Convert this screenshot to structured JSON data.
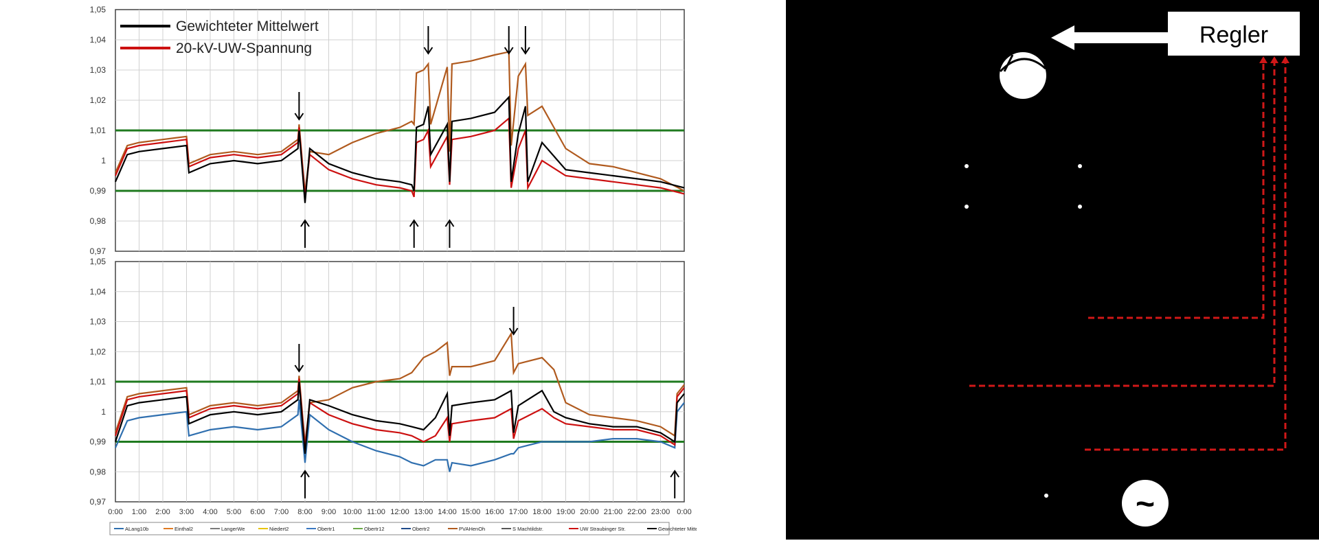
{
  "chart_data": [
    {
      "type": "line",
      "title": "",
      "xlabel": "",
      "ylabel": "",
      "ylim": [
        0.97,
        1.05
      ],
      "yticks": [
        "0,97",
        "0,98",
        "0,99",
        "1",
        "1,01",
        "1,02",
        "1,03",
        "1,04",
        "1,05"
      ],
      "grid": true,
      "limit_lines": [
        1.01,
        0.99
      ],
      "legend_position": "top-left",
      "legend": [
        "Gewichteter Mittelwert",
        "20-kV-UW-Spannung"
      ],
      "annotation_arrows": [
        {
          "x_hour": 7.75,
          "direction": "down"
        },
        {
          "x_hour": 8.0,
          "direction": "up"
        },
        {
          "x_hour": 12.6,
          "direction": "up"
        },
        {
          "x_hour": 13.2,
          "direction": "down"
        },
        {
          "x_hour": 14.1,
          "direction": "up"
        },
        {
          "x_hour": 16.6,
          "direction": "down"
        },
        {
          "x_hour": 17.3,
          "direction": "down"
        }
      ],
      "series": [
        {
          "name": "Gewichteter Mittelwert",
          "color": "#000000",
          "x": [
            0,
            0.5,
            1,
            2,
            3,
            3.1,
            4,
            5,
            6,
            7,
            7.7,
            7.75,
            8,
            8.2,
            9,
            10,
            11,
            12,
            12.5,
            12.6,
            12.7,
            13,
            13.2,
            13.3,
            14,
            14.1,
            14.2,
            15,
            16,
            16.6,
            16.7,
            17,
            17.3,
            17.4,
            18,
            19,
            20,
            21,
            22,
            23,
            23.5,
            24
          ],
          "y": [
            0.993,
            1.002,
            1.003,
            1.004,
            1.005,
            0.996,
            0.999,
            1.0,
            0.999,
            1.0,
            1.004,
            1.01,
            0.986,
            1.004,
            0.999,
            0.996,
            0.994,
            0.993,
            0.992,
            0.99,
            1.011,
            1.012,
            1.018,
            1.002,
            1.012,
            0.993,
            1.013,
            1.014,
            1.016,
            1.021,
            0.993,
            1.009,
            1.018,
            0.993,
            1.006,
            0.997,
            0.996,
            0.995,
            0.994,
            0.993,
            0.992,
            0.991
          ]
        },
        {
          "name": "20-kV-UW-Spannung",
          "color": "#cc1010",
          "x": [
            0,
            0.5,
            1,
            2,
            3,
            3.1,
            4,
            5,
            6,
            7,
            7.7,
            7.75,
            8,
            8.2,
            9,
            10,
            11,
            12,
            12.5,
            12.6,
            12.7,
            13,
            13.2,
            13.3,
            14,
            14.1,
            14.2,
            15,
            16,
            16.6,
            16.7,
            17,
            17.3,
            17.4,
            18,
            19,
            20,
            21,
            22,
            23,
            23.5,
            24
          ],
          "y": [
            0.995,
            1.004,
            1.005,
            1.006,
            1.007,
            0.998,
            1.001,
            1.002,
            1.001,
            1.002,
            1.006,
            1.011,
            0.988,
            1.002,
            0.997,
            0.994,
            0.992,
            0.991,
            0.99,
            0.988,
            1.006,
            1.007,
            1.01,
            0.998,
            1.008,
            0.992,
            1.007,
            1.008,
            1.01,
            1.014,
            0.991,
            1.004,
            1.01,
            0.991,
            1.0,
            0.995,
            0.994,
            0.993,
            0.992,
            0.991,
            0.99,
            0.989
          ]
        },
        {
          "name": "PVAHenOh",
          "color": "#b05a1e",
          "x": [
            0,
            0.5,
            1,
            2,
            3,
            3.1,
            4,
            5,
            6,
            7,
            7.7,
            7.75,
            8,
            8.2,
            9,
            10,
            11,
            12,
            12.5,
            12.6,
            12.7,
            13,
            13.2,
            13.3,
            14,
            14.1,
            14.2,
            15,
            16,
            16.6,
            16.7,
            17,
            17.3,
            17.4,
            18,
            19,
            20,
            21,
            22,
            23,
            23.5,
            24
          ],
          "y": [
            0.996,
            1.005,
            1.006,
            1.007,
            1.008,
            0.999,
            1.002,
            1.003,
            1.002,
            1.003,
            1.007,
            1.012,
            0.989,
            1.003,
            1.002,
            1.006,
            1.009,
            1.011,
            1.013,
            1.012,
            1.029,
            1.03,
            1.032,
            1.012,
            1.031,
            1.003,
            1.032,
            1.033,
            1.035,
            1.036,
            1.005,
            1.028,
            1.032,
            1.015,
            1.018,
            1.004,
            0.999,
            0.998,
            0.996,
            0.994,
            0.992,
            0.99
          ]
        }
      ]
    },
    {
      "type": "line",
      "title": "",
      "xlabel": "",
      "ylabel": "",
      "ylim": [
        0.97,
        1.05
      ],
      "yticks": [
        "0,97",
        "0,98",
        "0,99",
        "1",
        "1,01",
        "1,02",
        "1,03",
        "1,04",
        "1,05"
      ],
      "xticks": [
        "0:00",
        "1:00",
        "2:00",
        "3:00",
        "4:00",
        "5:00",
        "6:00",
        "7:00",
        "8:00",
        "9:00",
        "10:00",
        "11:00",
        "12:00",
        "13:00",
        "14:00",
        "15:00",
        "16:00",
        "17:00",
        "18:00",
        "19:00",
        "20:00",
        "21:00",
        "22:00",
        "23:00",
        "0:00"
      ],
      "grid": true,
      "limit_lines": [
        1.01,
        0.99
      ],
      "legend_position": "bottom",
      "legend": [
        "ALang10b",
        "Einthal2",
        "LangerWe",
        "Niedert2",
        "Obertr1",
        "Obertr12",
        "Obertr2",
        "PVAHenOh",
        "S Machtildstr.",
        "UW Straubinger Str.",
        "Gewichteter Mittelwert"
      ],
      "annotation_arrows": [
        {
          "x_hour": 7.75,
          "direction": "down"
        },
        {
          "x_hour": 8.0,
          "direction": "up"
        },
        {
          "x_hour": 16.8,
          "direction": "down"
        },
        {
          "x_hour": 23.6,
          "direction": "up"
        }
      ],
      "series": [
        {
          "name": "Gewichteter Mittelwert",
          "color": "#000000",
          "x": [
            0,
            0.5,
            1,
            2,
            3,
            3.1,
            4,
            5,
            6,
            7,
            7.7,
            7.75,
            8,
            8.2,
            9,
            10,
            11,
            12,
            12.5,
            13,
            13.5,
            14,
            14.1,
            14.2,
            15,
            16,
            16.7,
            16.8,
            17,
            18,
            18.5,
            19,
            20,
            21,
            22,
            23,
            23.6,
            23.7,
            24
          ],
          "y": [
            0.99,
            1.002,
            1.003,
            1.004,
            1.005,
            0.996,
            0.999,
            1.0,
            0.999,
            1.0,
            1.004,
            1.01,
            0.986,
            1.004,
            1.002,
            0.999,
            0.997,
            0.996,
            0.995,
            0.994,
            0.998,
            1.006,
            0.992,
            1.002,
            1.003,
            1.004,
            1.007,
            0.993,
            1.002,
            1.007,
            1.0,
            0.998,
            0.996,
            0.995,
            0.995,
            0.993,
            0.99,
            1.003,
            1.006
          ]
        },
        {
          "name": "UW Straubinger Str.",
          "color": "#cc1010",
          "x": [
            0,
            0.5,
            1,
            2,
            3,
            3.1,
            4,
            5,
            6,
            7,
            7.7,
            7.75,
            8,
            8.2,
            9,
            10,
            11,
            12,
            12.5,
            13,
            13.5,
            14,
            14.1,
            14.2,
            15,
            16,
            16.7,
            16.8,
            17,
            18,
            18.5,
            19,
            20,
            21,
            22,
            23,
            23.6,
            23.7,
            24
          ],
          "y": [
            0.992,
            1.004,
            1.005,
            1.006,
            1.007,
            0.998,
            1.001,
            1.002,
            1.001,
            1.002,
            1.006,
            1.011,
            0.988,
            1.003,
            0.999,
            0.996,
            0.994,
            0.993,
            0.992,
            0.99,
            0.992,
            0.998,
            0.99,
            0.996,
            0.997,
            0.998,
            1.001,
            0.991,
            0.997,
            1.001,
            0.998,
            0.996,
            0.995,
            0.994,
            0.994,
            0.992,
            0.989,
            1.005,
            1.008
          ]
        },
        {
          "name": "PVAHenOh",
          "color": "#b05a1e",
          "x": [
            0,
            0.5,
            1,
            2,
            3,
            3.1,
            4,
            5,
            6,
            7,
            7.7,
            7.75,
            8,
            8.2,
            9,
            10,
            11,
            12,
            12.5,
            13,
            13.5,
            14,
            14.1,
            14.2,
            15,
            16,
            16.7,
            16.8,
            17,
            18,
            18.5,
            19,
            20,
            21,
            22,
            23,
            23.6,
            23.7,
            24
          ],
          "y": [
            0.993,
            1.005,
            1.006,
            1.007,
            1.008,
            0.999,
            1.002,
            1.003,
            1.002,
            1.003,
            1.007,
            1.012,
            0.989,
            1.003,
            1.004,
            1.008,
            1.01,
            1.011,
            1.013,
            1.018,
            1.02,
            1.023,
            1.012,
            1.015,
            1.015,
            1.017,
            1.026,
            1.013,
            1.016,
            1.018,
            1.014,
            1.003,
            0.999,
            0.998,
            0.997,
            0.995,
            0.992,
            1.006,
            1.009
          ]
        },
        {
          "name": "Obertr1",
          "color": "#2f6faf",
          "x": [
            0,
            0.5,
            1,
            2,
            3,
            3.1,
            4,
            5,
            6,
            7,
            7.7,
            7.75,
            8,
            8.2,
            9,
            10,
            11,
            12,
            12.5,
            13,
            13.5,
            14,
            14.1,
            14.2,
            15,
            16,
            16.7,
            16.8,
            17,
            18,
            18.5,
            19,
            20,
            21,
            22,
            23,
            23.6,
            23.7,
            24
          ],
          "y": [
            0.988,
            0.997,
            0.998,
            0.999,
            1.0,
            0.992,
            0.994,
            0.995,
            0.994,
            0.995,
            0.999,
            1.004,
            0.983,
            0.999,
            0.994,
            0.99,
            0.987,
            0.985,
            0.983,
            0.982,
            0.984,
            0.984,
            0.98,
            0.983,
            0.982,
            0.984,
            0.986,
            0.986,
            0.988,
            0.99,
            0.99,
            0.99,
            0.99,
            0.991,
            0.991,
            0.99,
            0.988,
            1.0,
            1.003
          ]
        }
      ]
    }
  ],
  "diagram": {
    "regler_label": "Regler",
    "tilde_symbol": "~"
  },
  "colors": {
    "grid": "#d0d0d0",
    "limit_line": "#1f7a1f",
    "arrow": "#000000",
    "signal_line": "#d01818",
    "diagram_bg": "#000000"
  }
}
